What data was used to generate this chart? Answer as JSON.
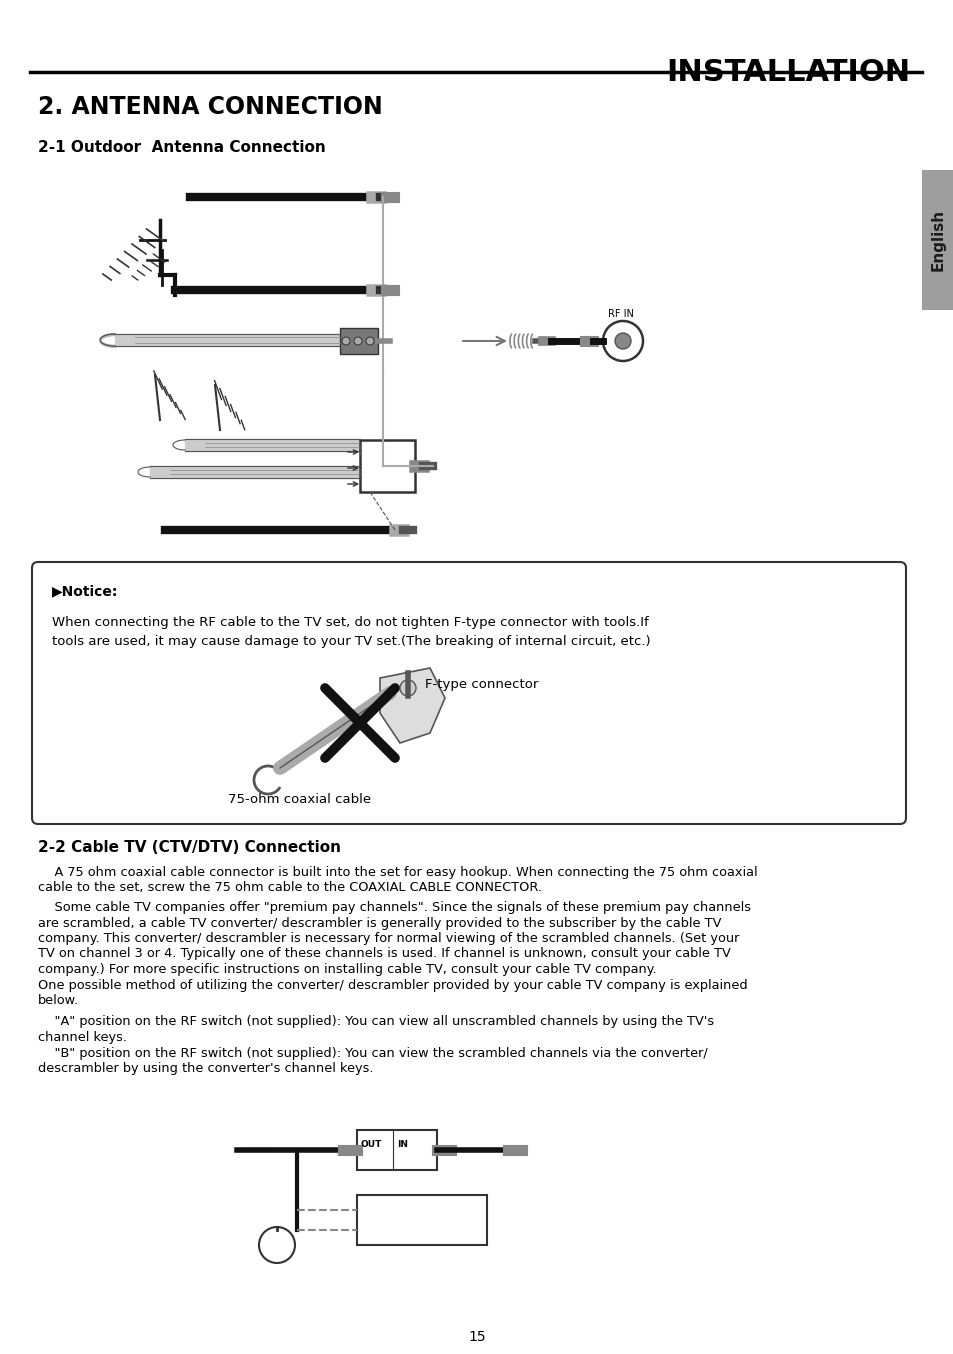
{
  "page_title": "INSTALLATION",
  "section_title": "2. ANTENNA CONNECTION",
  "subsection1": "2-1 Outdoor  Antenna Connection",
  "subsection2": "2-2 Cable TV (CTV/DTV) Connection",
  "notice_title": "▶Notice:",
  "notice_text1": "When connecting the RF cable to the TV set, do not tighten F-type connector with tools.If",
  "notice_text2": "tools are used, it may cause damage to your TV set.(The breaking of internal circuit, etc.)",
  "ftype_label": "F-type connector",
  "cable_label": "75-ohm coaxial cable",
  "rf_in_label": "RF IN",
  "para1_indent": "    A 75 ohm coaxial cable connector is built into the set for easy hookup. When connecting the 75 ohm coaxial",
  "para1_cont": "cable to the set, screw the 75 ohm cable to the COAXIAL CABLE CONNECTOR.",
  "para2_line1": "    Some cable TV companies offer \"premium pay channels\". Since the signals of these premium pay channels",
  "para2_line2": "are scrambled, a cable TV converter/ descrambler is generally provided to the subscriber by the cable TV",
  "para2_line3": "company. This converter/ descrambler is necessary for normal viewing of the scrambled channels. (Set your",
  "para2_line4": "TV on channel 3 or 4. Typically one of these channels is used. If channel is unknown, consult your cable TV",
  "para2_line5": "company.) For more specific instructions on installing cable TV, consult your cable TV company.",
  "para3_line1": "One possible method of utilizing the converter/ descrambler provided by your cable TV company is explained",
  "para3_line2": "below.",
  "para4a_line1": "    \"A\" position on the RF switch (not supplied): You can view all unscrambled channels by using the TV's",
  "para4a_line2": "channel keys.",
  "para4b_line1": "    \"B\" position on the RF switch (not supplied): You can view the scrambled channels via the converter/",
  "para4b_line2": "descrambler by using the converter's channel keys.",
  "page_number": "15",
  "bg_color": "#ffffff",
  "text_color": "#000000",
  "english_tab_color": "#9e9e9e",
  "english_tab_text": "English"
}
